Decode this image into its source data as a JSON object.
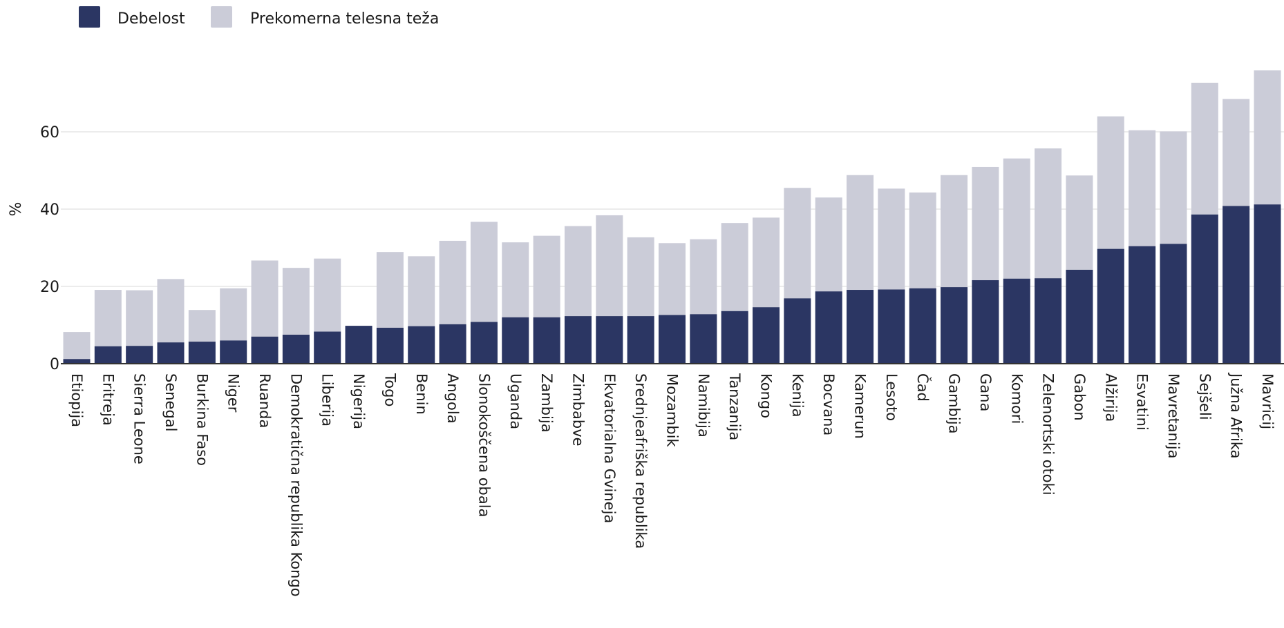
{
  "chart_data": {
    "type": "bar",
    "stacking": "overlay",
    "title": "",
    "xlabel": "",
    "ylabel": "%",
    "ylim": [
      0,
      80
    ],
    "yticks": [
      0,
      20,
      40,
      60
    ],
    "grid": true,
    "legend_position": "top-left",
    "categories": [
      "Etiopija",
      "Eritreja",
      "Sierra Leone",
      "Senegal",
      "Burkina Faso",
      "Niger",
      "Ruanda",
      "Demokratična republika Kongo",
      "Liberija",
      "Nigerija",
      "Togo",
      "Benin",
      "Angola",
      "Slonokoščena obala",
      "Uganda",
      "Zambija",
      "Zimbabve",
      "Ekvatorialna Gvineja",
      "Srednjeafriška republika",
      "Mozambik",
      "Namibija",
      "Tanzanija",
      "Kongo",
      "Kenija",
      "Bocvana",
      "Kamerun",
      "Lesoto",
      "Čad",
      "Gambija",
      "Gana",
      "Komori",
      "Zelenortski otoki",
      "Gabon",
      "Alžirija",
      "Esvatini",
      "Mavretanija",
      "Sejšeli",
      "Južna Afrika",
      "Mavricij"
    ],
    "series": [
      {
        "name": "Debelost",
        "color": "#2b3663",
        "values": [
          1.2,
          4.5,
          4.6,
          5.5,
          5.7,
          6.0,
          7.0,
          7.5,
          8.3,
          9.8,
          9.3,
          9.7,
          10.2,
          10.8,
          12.0,
          12.0,
          12.3,
          12.3,
          12.3,
          12.6,
          12.8,
          13.6,
          14.6,
          16.9,
          18.7,
          19.1,
          19.2,
          19.5,
          19.8,
          21.6,
          22.0,
          22.1,
          24.3,
          29.7,
          30.4,
          31.0,
          38.6,
          40.8,
          41.2
        ]
      },
      {
        "name": "Prekomerna telesna teža",
        "color": "#cbccd8",
        "values": [
          8.2,
          19.1,
          19.0,
          21.9,
          13.9,
          19.5,
          26.7,
          24.8,
          27.2,
          9.8,
          28.9,
          27.8,
          31.8,
          36.7,
          31.4,
          33.1,
          35.6,
          38.4,
          32.7,
          31.2,
          32.2,
          36.4,
          37.8,
          45.5,
          43.0,
          48.8,
          45.3,
          44.3,
          48.8,
          50.9,
          53.1,
          55.7,
          48.7,
          64.0,
          60.4,
          60.1,
          72.7,
          68.5,
          75.9
        ]
      }
    ]
  }
}
